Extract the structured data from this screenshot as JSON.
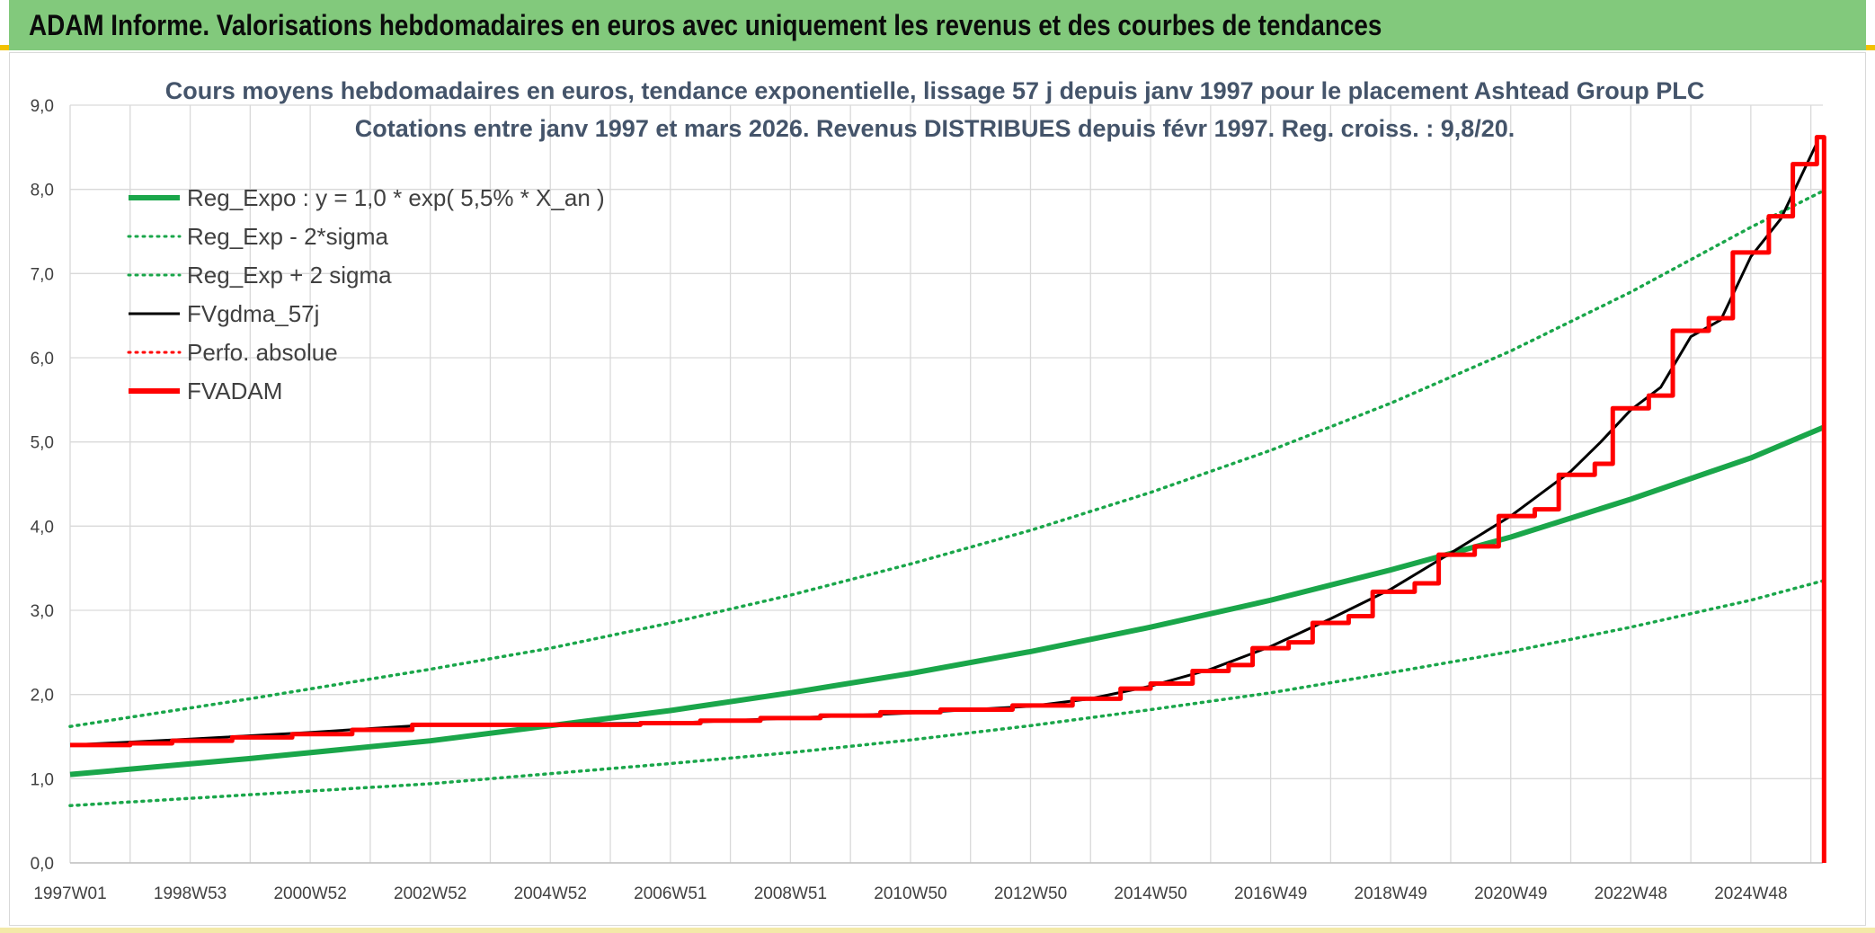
{
  "header": {
    "title": "ADAM Informe. Valorisations hebdomadaires en euros avec uniquement les revenus et des courbes de tendances"
  },
  "chart_data": {
    "type": "line",
    "title": "Cours moyens hebdomadaires en euros, tendance exponentielle, lissage 57 j depuis janv 1997 pour le placement Ashtead Group PLC",
    "subtitle": "Cotations entre janv 1997 et mars 2026. Revenus DISTRIBUES depuis févr 1997. Reg. croiss. : 9,8/20.",
    "xlabel": "",
    "ylabel": "",
    "xlim": [
      1997.0,
      2026.2
    ],
    "ylim": [
      0,
      9
    ],
    "yticks": [
      0,
      1,
      2,
      3,
      4,
      5,
      6,
      7,
      8,
      9
    ],
    "ytick_labels": [
      "0,0",
      "1,0",
      "2,0",
      "3,0",
      "4,0",
      "5,0",
      "6,0",
      "7,0",
      "8,0",
      "9,0"
    ],
    "xticks": [
      1997.0,
      1999.0,
      2001.0,
      2003.0,
      2005.0,
      2007.0,
      2009.0,
      2011.0,
      2013.0,
      2015.0,
      2017.0,
      2019.0,
      2021.0,
      2023.0,
      2025.0
    ],
    "xtick_labels": [
      "1997W01",
      "1998W53",
      "2000W52",
      "2002W52",
      "2004W52",
      "2006W51",
      "2008W51",
      "2010W50",
      "2012W50",
      "2014W50",
      "2016W49",
      "2018W49",
      "2020W49",
      "2022W48",
      "2024W48"
    ],
    "grid": true,
    "legend_position": "top-left",
    "series": [
      {
        "name": "Reg_Expo : y = 1,0 * exp( 5,5% *  X_an )",
        "color": "#1aa64a",
        "style": "solid-thick",
        "x": [
          1997.0,
          2000.0,
          2003.0,
          2005.0,
          2007.0,
          2009.0,
          2011.0,
          2013.0,
          2015.0,
          2017.0,
          2019.0,
          2021.0,
          2023.0,
          2025.0,
          2026.2
        ],
        "y": [
          1.05,
          1.24,
          1.45,
          1.63,
          1.81,
          2.02,
          2.25,
          2.51,
          2.8,
          3.12,
          3.48,
          3.87,
          4.32,
          4.81,
          5.17
        ]
      },
      {
        "name": "Reg_Exp - 2*sigma",
        "color": "#1aa64a",
        "style": "dotted",
        "x": [
          1997.0,
          2000.0,
          2003.0,
          2005.0,
          2007.0,
          2009.0,
          2011.0,
          2013.0,
          2015.0,
          2017.0,
          2019.0,
          2021.0,
          2023.0,
          2025.0,
          2026.2
        ],
        "y": [
          0.68,
          0.81,
          0.94,
          1.06,
          1.18,
          1.31,
          1.46,
          1.63,
          1.82,
          2.02,
          2.26,
          2.51,
          2.8,
          3.12,
          3.35
        ]
      },
      {
        "name": "Reg_Exp + 2 sigma",
        "color": "#1aa64a",
        "style": "dotted",
        "x": [
          1997.0,
          2000.0,
          2003.0,
          2005.0,
          2007.0,
          2009.0,
          2011.0,
          2013.0,
          2015.0,
          2017.0,
          2019.0,
          2021.0,
          2023.0,
          2025.0,
          2026.2
        ],
        "y": [
          1.62,
          1.95,
          2.3,
          2.55,
          2.85,
          3.18,
          3.55,
          3.95,
          4.4,
          4.9,
          5.46,
          6.08,
          6.78,
          7.55,
          7.98
        ]
      },
      {
        "name": "FVgdma_57j",
        "color": "#000000",
        "style": "solid",
        "x": [
          1997.0,
          1999.0,
          2001.0,
          2003.0,
          2005.0,
          2007.0,
          2009.0,
          2011.0,
          2013.0,
          2014.0,
          2015.0,
          2016.0,
          2017.0,
          2018.0,
          2019.0,
          2020.0,
          2021.0,
          2022.0,
          2022.5,
          2023.0,
          2023.5,
          2024.0,
          2024.5,
          2025.0,
          2025.5,
          2026.1
        ],
        "y": [
          1.4,
          1.47,
          1.55,
          1.64,
          1.65,
          1.66,
          1.72,
          1.78,
          1.86,
          1.95,
          2.1,
          2.3,
          2.57,
          2.9,
          3.25,
          3.68,
          4.12,
          4.65,
          5.0,
          5.38,
          5.65,
          6.25,
          6.45,
          7.2,
          7.65,
          8.55
        ]
      },
      {
        "name": "Perfo. absolue",
        "color": "#ff0000",
        "style": "dotted",
        "x": [],
        "y": []
      },
      {
        "name": "FVADAM",
        "color": "#ff0000",
        "style": "step-thick",
        "x": [
          1997.0,
          1998.0,
          1998.7,
          1999.7,
          2000.7,
          2001.7,
          2002.7,
          2005.0,
          2006.5,
          2007.5,
          2008.5,
          2009.5,
          2010.5,
          2011.5,
          2012.7,
          2013.7,
          2014.5,
          2015.0,
          2015.7,
          2016.3,
          2016.7,
          2017.3,
          2017.7,
          2018.3,
          2018.7,
          2019.4,
          2019.8,
          2020.4,
          2020.8,
          2021.4,
          2021.8,
          2022.4,
          2022.7,
          2023.3,
          2023.7,
          2024.3,
          2024.7,
          2025.3,
          2025.7,
          2026.1
        ],
        "y": [
          1.4,
          1.42,
          1.45,
          1.49,
          1.53,
          1.58,
          1.64,
          1.64,
          1.66,
          1.69,
          1.72,
          1.75,
          1.79,
          1.82,
          1.87,
          1.95,
          2.07,
          2.13,
          2.28,
          2.35,
          2.55,
          2.62,
          2.85,
          2.93,
          3.22,
          3.32,
          3.66,
          3.76,
          4.12,
          4.2,
          4.61,
          4.74,
          5.4,
          5.55,
          6.32,
          6.47,
          7.25,
          7.68,
          8.3,
          8.62
        ]
      }
    ],
    "annotations": [
      "FVADAM drops to 0,0 at the last week (vertical red line)"
    ]
  }
}
